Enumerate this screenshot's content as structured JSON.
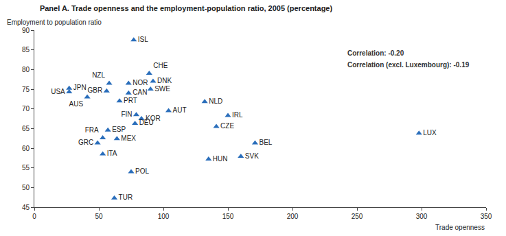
{
  "chart_data": {
    "type": "scatter",
    "title": "Panel A. Trade openness and the employment-population ratio, 2005 (percentage)",
    "x_label": "Trade openness",
    "y_label": "Employment to population ratio",
    "annotations": [
      "Correlation: -0.20",
      "Correlation (excl. Luxembourg): -0.19"
    ],
    "labels": [
      "ISL",
      "CHE",
      "NZL",
      "NOR",
      "DNK",
      "JPN",
      "USA",
      "GBR",
      "CAN",
      "SWE",
      "AUS",
      "PRT",
      "NLD",
      "AUT",
      "FIN",
      "KOR",
      "IRL",
      "DEU",
      "CZE",
      "LUX",
      "FRA",
      "ESP",
      "MEX",
      "GRC",
      "ITA",
      "BEL",
      "HUN",
      "SVK",
      "POL",
      "TUR"
    ],
    "x": [
      77,
      89,
      58,
      73,
      92,
      27,
      27,
      56,
      73,
      90,
      41,
      66,
      132,
      104,
      79,
      83,
      150,
      78,
      141,
      298,
      53,
      57,
      64,
      49,
      53,
      171,
      135,
      160,
      75,
      62
    ],
    "values": [
      87.5,
      79,
      76.5,
      76.5,
      77,
      75.2,
      74.3,
      74.5,
      74,
      75,
      73,
      72,
      71.8,
      69.5,
      68.5,
      67.5,
      68.3,
      66.3,
      65.5,
      63.8,
      62.6,
      64.6,
      62.4,
      61.3,
      58.5,
      61.3,
      57.2,
      57.9,
      54,
      47.3
    ],
    "color": "#2a6ebb",
    "marker": "triangle-up",
    "xlim": [
      0,
      350
    ],
    "xticks": [
      0,
      50,
      100,
      150,
      200,
      250,
      300,
      350
    ],
    "ylim": [
      45,
      90
    ],
    "yticks": [
      45,
      50,
      55,
      60,
      65,
      70,
      75,
      80,
      85,
      90
    ],
    "grid": false
  }
}
